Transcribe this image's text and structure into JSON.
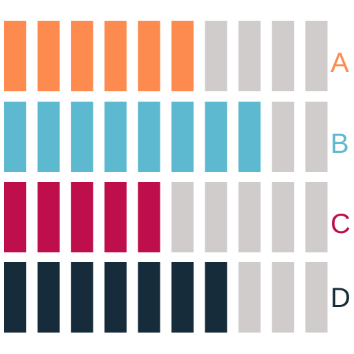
{
  "chart_data": {
    "type": "bar",
    "variant": "segmented-progress",
    "categories": [
      "A",
      "B",
      "C",
      "D"
    ],
    "values": [
      6,
      8,
      5,
      7
    ],
    "max": 10,
    "colors": {
      "A": "#fd8b50",
      "B": "#5cb9cf",
      "C": "#be0e4b",
      "D": "#172c3b",
      "empty": "#d1cccc"
    },
    "title": "",
    "xlabel": "",
    "ylabel": ""
  }
}
